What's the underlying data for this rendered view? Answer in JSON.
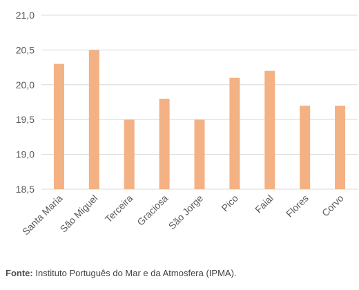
{
  "chart_data": {
    "type": "bar",
    "categories": [
      "Santa Maria",
      "São Miguel",
      "Terceira",
      "Graciosa",
      "São Jorge",
      "Pico",
      "Faial",
      "Flores",
      "Corvo"
    ],
    "values": [
      20.3,
      20.5,
      19.5,
      19.8,
      19.5,
      20.1,
      20.2,
      19.7,
      19.7
    ],
    "ylim": [
      18.5,
      21.0
    ],
    "yticks": [
      "18,5",
      "19,0",
      "19,5",
      "20,0",
      "20,5",
      "21,0"
    ],
    "grid": true,
    "bar_color": "#F4B183",
    "grid_color": "#D9D9D9",
    "legend": "none"
  },
  "source": {
    "label": "Fonte:",
    "text": " Instituto Português do Mar e da Atmosfera (IPMA)."
  }
}
